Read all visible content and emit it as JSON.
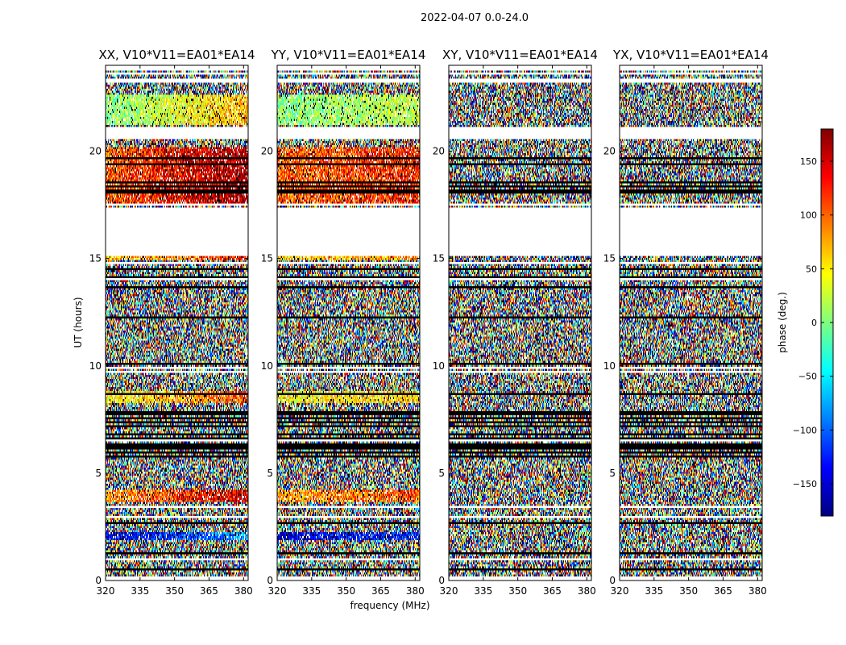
{
  "chart_data": {
    "type": "heatmap",
    "suptitle": "2022-04-07 0.0-24.0",
    "xlabel": "frequency (MHz)",
    "ylabel": "UT (hours)",
    "xlim": [
      320,
      382
    ],
    "ylim": [
      0,
      24
    ],
    "xticks": [
      "320",
      "335",
      "350",
      "365",
      "380"
    ],
    "xtick_values": [
      320,
      335,
      350,
      365,
      380
    ],
    "yticks": [
      "0",
      "5",
      "10",
      "15",
      "20"
    ],
    "ytick_values": [
      0,
      5,
      10,
      15,
      20
    ],
    "colorbar": {
      "label": "phase (deg.)",
      "range": [
        -180,
        180
      ],
      "ticks": [
        "150",
        "100",
        "50",
        "0",
        "−50",
        "−100",
        "−150"
      ],
      "tick_values": [
        150,
        100,
        50,
        0,
        -50,
        -100,
        -150
      ],
      "colormap": [
        "#00007f",
        "#0000ff",
        "#007fff",
        "#00ffff",
        "#7fff7f",
        "#ffff00",
        "#ff7f00",
        "#ff0000",
        "#7f0000"
      ]
    },
    "panels": [
      {
        "title": "XX, V10*V11=EA01*EA14",
        "polarization": "XX"
      },
      {
        "title": "YY, V10*V11=EA01*EA14",
        "polarization": "YY"
      },
      {
        "title": "XY, V10*V11=EA01*EA14",
        "polarization": "XY"
      },
      {
        "title": "YX, V10*V11=EA01*EA14",
        "polarization": "YX"
      }
    ],
    "gaps_ut_hours": [
      [
        17.4,
        15.1
      ],
      [
        20.6,
        21.1
      ],
      [
        23.2,
        23.4
      ],
      [
        23.8,
        24.0
      ]
    ],
    "dense_flag_ut_hours": [
      [
        5.5,
        8.0
      ]
    ],
    "coherent_phase_bands": [
      {
        "ut_start": 17.6,
        "ut_end": 20.2,
        "phase_deg": 100
      },
      {
        "ut_start": 21.2,
        "ut_end": 22.6,
        "phase_deg": 0
      },
      {
        "ut_start": 14.9,
        "ut_end": 15.1,
        "phase_deg": 60
      },
      {
        "ut_start": 3.7,
        "ut_end": 4.2,
        "phase_deg": 80
      },
      {
        "ut_start": 1.9,
        "ut_end": 2.3,
        "phase_deg": -150
      },
      {
        "ut_start": 8.3,
        "ut_end": 8.8,
        "phase_deg": 40
      }
    ]
  }
}
